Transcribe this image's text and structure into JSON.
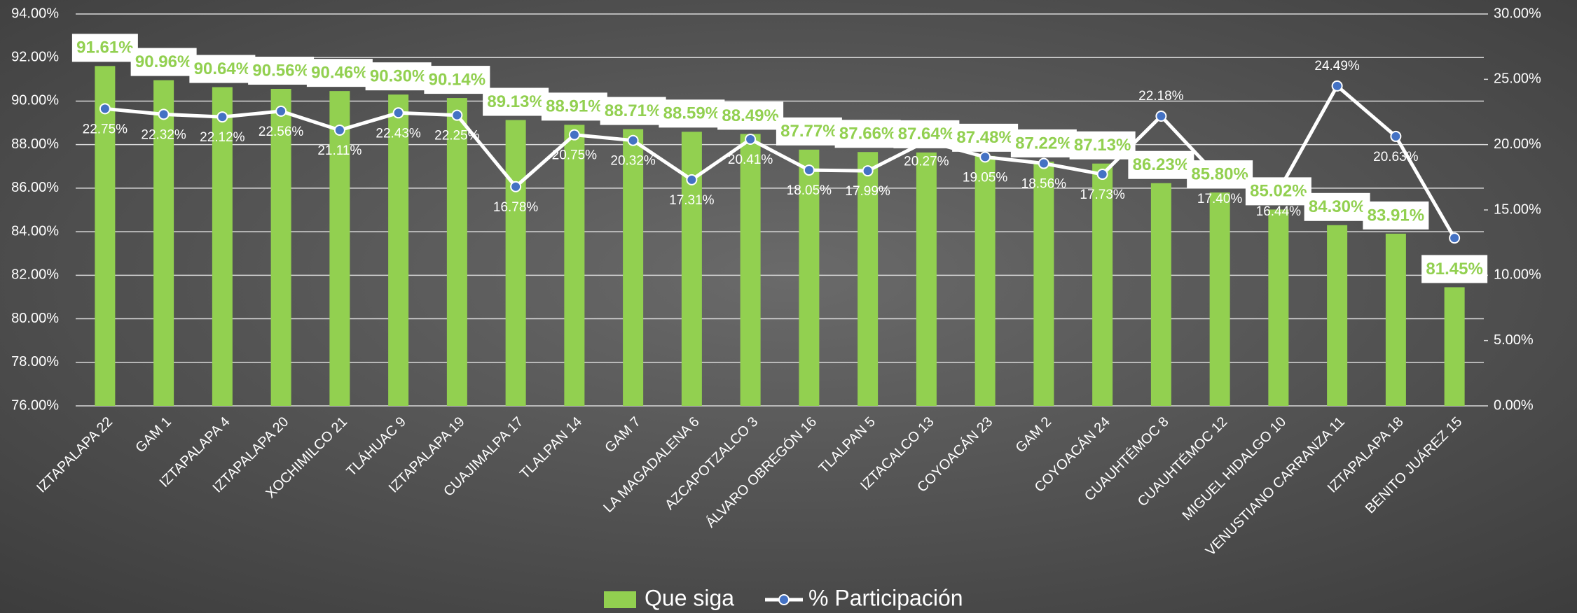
{
  "chart_data": {
    "type": "bar-line",
    "categories": [
      "IZTAPALAPA 22",
      "GAM 1",
      "IZTAPALAPA 4",
      "IZTAPALAPA 20",
      "XOCHIMILCO 21",
      "TLÁHUAC 9",
      "IZTAPALAPA 19",
      "CUAJIMALPA 17",
      "TLALPAN 14",
      "GAM 7",
      "LA MAGADALENA 6",
      "AZCAPOTZALCO 3",
      "ÁLVARO OBREGÓN 16",
      "TLALPAN 5",
      "IZTACALCO 13",
      "COYOACÁN 23",
      "GAM 2",
      "COYOACÁN 24",
      "CUAUHTÉMOC 8",
      "CUAUHTÉMOC 12",
      "MIGUEL HIDALGO 10",
      "VENUSTIANO CARRANZA 11",
      "IZTAPALAPA 18",
      "BENITO JUÁREZ 15"
    ],
    "series": [
      {
        "name": "Que siga",
        "type": "bar",
        "color": "#92d050",
        "values": [
          91.61,
          90.96,
          90.64,
          90.56,
          90.46,
          90.3,
          90.14,
          89.13,
          88.91,
          88.71,
          88.59,
          88.49,
          87.77,
          87.66,
          87.64,
          87.48,
          87.22,
          87.13,
          86.23,
          85.8,
          85.02,
          84.3,
          83.91,
          81.45
        ],
        "value_labels": [
          "91.61%",
          "90.96%",
          "90.64%",
          "90.56%",
          "90.46%",
          "90.30%",
          "90.14%",
          "89.13%",
          "88.91%",
          "88.71%",
          "88.59%",
          "88.49%",
          "87.77%",
          "87.66%",
          "87.64%",
          "87.48%",
          "87.22%",
          "87.13%",
          "86.23%",
          "85.80%",
          "85.02%",
          "84.30%",
          "83.91%",
          "81.45%"
        ]
      },
      {
        "name": "% Participación",
        "type": "line",
        "axis": "y2",
        "color": "#ffffff",
        "marker_color": "#4472c4",
        "values": [
          22.75,
          22.32,
          22.12,
          22.56,
          21.11,
          22.43,
          22.25,
          16.78,
          20.75,
          20.32,
          17.31,
          20.41,
          18.05,
          17.99,
          20.27,
          19.05,
          18.56,
          17.73,
          22.18,
          17.4,
          16.44,
          24.49,
          20.63,
          12.85
        ],
        "value_labels": [
          "22.75%",
          "22.32%",
          "22.12%",
          "22.56%",
          "21.11%",
          "22.43%",
          "22.25%",
          "16.78%",
          "20.75%",
          "20.32%",
          "17.31%",
          "20.41%",
          "18.05%",
          "17.99%",
          "20.27%",
          "19.05%",
          "18.56%",
          "17.73%",
          "22.18%",
          "17.40%",
          "16.44%",
          "24.49%",
          "20.63%",
          null
        ]
      }
    ],
    "ylim": [
      76,
      94
    ],
    "yticks": [
      {
        "value": 76,
        "label": "76.00%"
      },
      {
        "value": 78,
        "label": "78.00%"
      },
      {
        "value": 80,
        "label": "80.00%"
      },
      {
        "value": 82,
        "label": "82.00%"
      },
      {
        "value": 84,
        "label": "84.00%"
      },
      {
        "value": 86,
        "label": "86.00%"
      },
      {
        "value": 88,
        "label": "88.00%"
      },
      {
        "value": 90,
        "label": "90.00%"
      },
      {
        "value": 92,
        "label": "92.00%"
      },
      {
        "value": 94,
        "label": "94.00%"
      }
    ],
    "y2lim": [
      0,
      30
    ],
    "y2ticks": [
      {
        "value": 0,
        "label": "0.00%"
      },
      {
        "value": 5,
        "label": "5.00%"
      },
      {
        "value": 10,
        "label": "10.00%"
      },
      {
        "value": 15,
        "label": "15.00%"
      },
      {
        "value": 20,
        "label": "20.00%"
      },
      {
        "value": 25,
        "label": "25.00%"
      },
      {
        "value": 30,
        "label": "30.00%"
      }
    ],
    "grid": true,
    "legend": "bottom"
  }
}
